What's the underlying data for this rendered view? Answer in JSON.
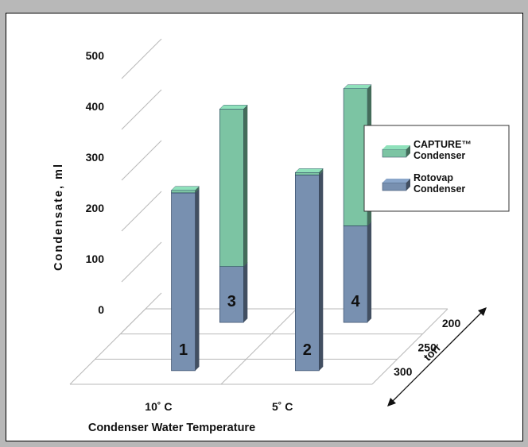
{
  "chart_data": {
    "type": "bar",
    "subtype": "3d-stacked-bar",
    "ylabel": "Condensate, ml",
    "xlabel": "Condenser Water Temperature",
    "zlabel": "torr",
    "ylim": [
      0,
      500
    ],
    "yticks": [
      "0",
      "100",
      "200",
      "300",
      "400",
      "500"
    ],
    "x_categories": [
      "10˚ C",
      "5˚ C"
    ],
    "z_categories": [
      "200",
      "250",
      "300"
    ],
    "legend_position": "right",
    "series": [
      {
        "name": "Rotovap Condenser",
        "color": "#7890b0"
      },
      {
        "name": "CAPTURE™ Condenser",
        "color": "#7cc4a3"
      }
    ],
    "bars": [
      {
        "label": "1",
        "temperature": "10˚ C",
        "pressure": "300",
        "rotovap": 350,
        "capture": 5
      },
      {
        "label": "2",
        "temperature": "5˚ C",
        "pressure": "300",
        "rotovap": 385,
        "capture": 5
      },
      {
        "label": "3",
        "temperature": "10˚ C",
        "pressure": "200",
        "rotovap": 110,
        "capture": 310
      },
      {
        "label": "4",
        "temperature": "5˚ C",
        "pressure": "200",
        "rotovap": 190,
        "capture": 270
      }
    ]
  },
  "legend": {
    "items": [
      {
        "line1": "CAPTURE™",
        "line2": "Condenser",
        "color": "#7cc4a3"
      },
      {
        "line1": "Rotovap",
        "line2": "Condenser",
        "color": "#7890b0"
      }
    ]
  }
}
